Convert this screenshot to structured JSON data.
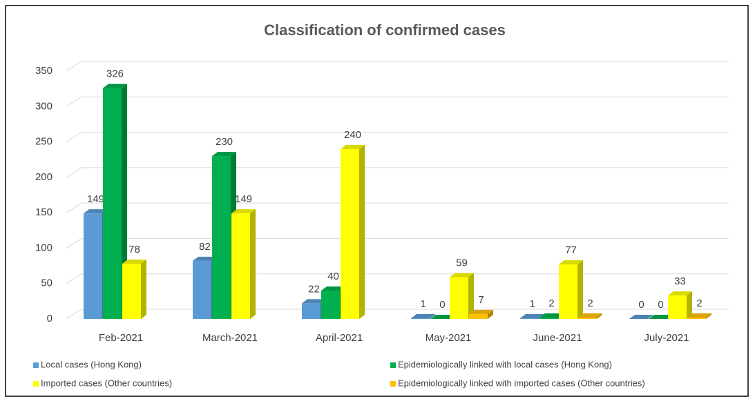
{
  "chart_data": {
    "type": "bar3d",
    "title": "Classification of confirmed cases",
    "categories": [
      "Feb-2021",
      "March-2021",
      "April-2021",
      "May-2021",
      "June-2021",
      "July-2021"
    ],
    "series": [
      {
        "name": "Local cases (Hong Kong)",
        "color": "#5b9bd5",
        "values": [
          149,
          82,
          22,
          1,
          1,
          0
        ]
      },
      {
        "name": "Epidemiologically linked with local cases (Hong Kong)",
        "color": "#00b050",
        "values": [
          326,
          230,
          40,
          0,
          2,
          0
        ]
      },
      {
        "name": "Imported cases (Other countries)",
        "color": "#ffff00",
        "values": [
          78,
          149,
          240,
          59,
          77,
          33
        ]
      },
      {
        "name": "Epidemiologically linked with imported cases (Other countries)",
        "color": "#ffc000",
        "values": [
          null,
          null,
          null,
          7,
          2,
          2
        ]
      }
    ],
    "ylim": [
      0,
      350
    ],
    "yticks": [
      0,
      50,
      100,
      150,
      200,
      250,
      300,
      350
    ],
    "grid": true
  }
}
